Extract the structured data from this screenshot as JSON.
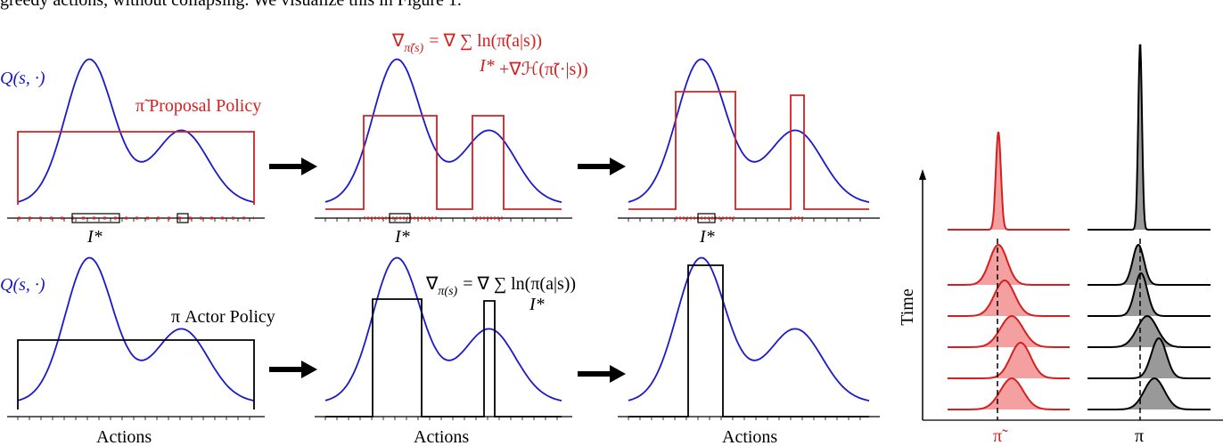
{
  "caption_fragment": "greedy actions, without collapsing. We visualize this in Figure 1.",
  "top_row": {
    "q_label": "Q(s, ·)",
    "policy_label": "π̃ Proposal Policy",
    "update_rule": {
      "nabla": "∇",
      "subscript": "π̃(s)",
      "rhs": "= ∇ ∑ ln(π̃(a|s))",
      "sum_index": "I*",
      "entropy_term": "+∇ℋ(π̃(·|s))"
    },
    "interval_labels": [
      "I*",
      "I*",
      "I*"
    ]
  },
  "bottom_row": {
    "q_label": "Q(s, ·)",
    "policy_label": "π Actor Policy",
    "update_rule": {
      "nabla": "∇",
      "subscript": "π(s)",
      "rhs": "= ∇ ∑ ln(π(a|s))",
      "sum_index": "I*"
    },
    "axis_labels": [
      "Actions",
      "Actions",
      "Actions"
    ]
  },
  "evolution": {
    "y_label": "Time",
    "columns": [
      "π̃",
      "π"
    ]
  }
}
